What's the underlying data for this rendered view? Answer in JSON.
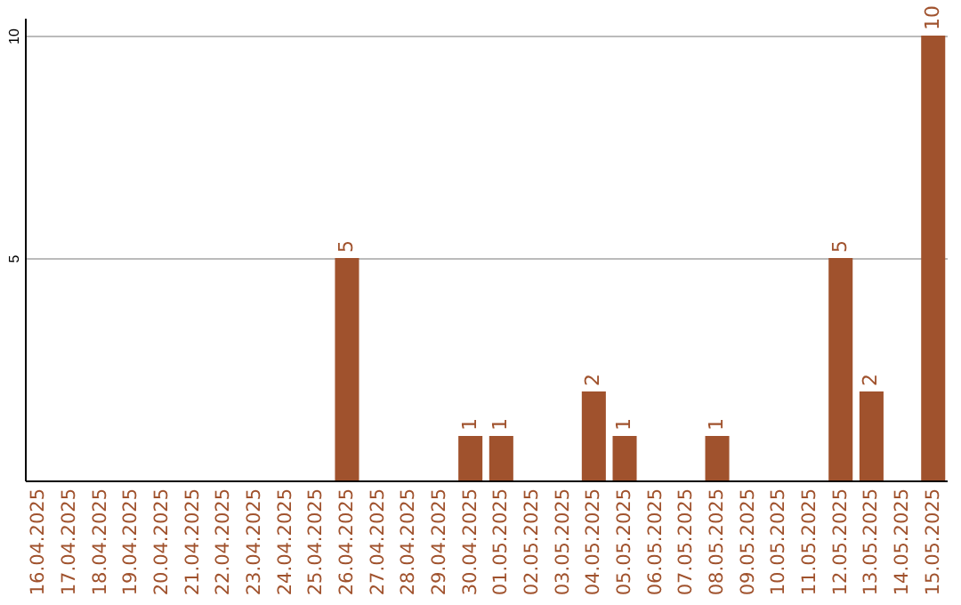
{
  "chart_data": {
    "type": "bar",
    "categories": [
      "16.04.2025",
      "17.04.2025",
      "18.04.2025",
      "19.04.2025",
      "20.04.2025",
      "21.04.2025",
      "22.04.2025",
      "23.04.2025",
      "24.04.2025",
      "25.04.2025",
      "26.04.2025",
      "27.04.2025",
      "28.04.2025",
      "29.04.2025",
      "30.04.2025",
      "01.05.2025",
      "02.05.2025",
      "03.05.2025",
      "04.05.2025",
      "05.05.2025",
      "06.05.2025",
      "07.05.2025",
      "08.05.2025",
      "09.05.2025",
      "10.05.2025",
      "11.05.2025",
      "12.05.2025",
      "13.05.2025",
      "14.05.2025",
      "15.05.2025"
    ],
    "values": [
      0,
      0,
      0,
      0,
      0,
      0,
      0,
      0,
      0,
      0,
      5,
      0,
      0,
      0,
      1,
      1,
      0,
      0,
      2,
      1,
      0,
      0,
      1,
      0,
      0,
      0,
      5,
      2,
      0,
      10
    ],
    "value_labels": [
      null,
      null,
      null,
      null,
      null,
      null,
      null,
      null,
      null,
      null,
      "5",
      null,
      null,
      null,
      "1",
      "1",
      null,
      null,
      "2",
      "1",
      null,
      null,
      "1",
      null,
      null,
      null,
      "5",
      "2",
      null,
      "10"
    ],
    "color": "#a0522d",
    "ylim": [
      0,
      10.4
    ],
    "yticks": [
      5,
      10
    ],
    "grid": "y"
  }
}
